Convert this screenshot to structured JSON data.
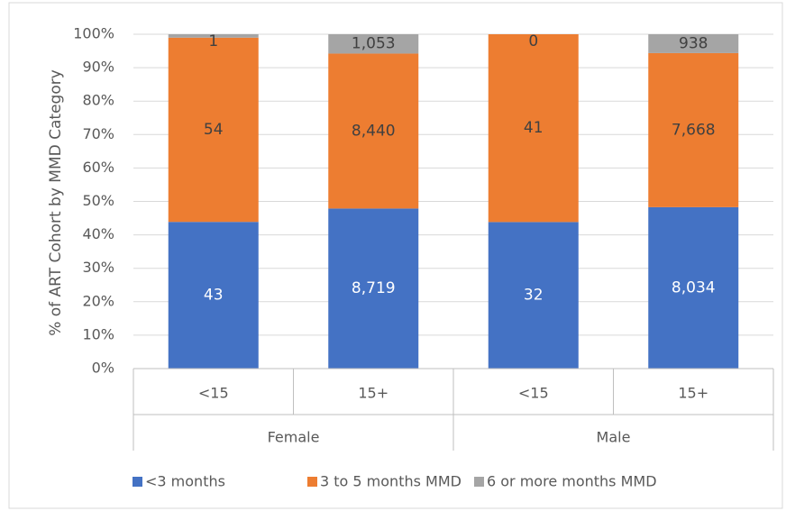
{
  "chart_data": {
    "type": "bar",
    "stacking": "percent",
    "y_label": "% of ART Cohort by MMD Category",
    "categories": [
      "<15",
      "15+",
      "<15",
      "15+"
    ],
    "group_labels": [
      "Female",
      "Male"
    ],
    "series": [
      {
        "name": "<3 months",
        "color": "#4472c4",
        "label_color": "#ffffff",
        "values": [
          43,
          8719,
          32,
          8034
        ],
        "value_labels": [
          "43",
          "8,719",
          "32",
          "8,034"
        ]
      },
      {
        "name": "3 to 5 months MMD",
        "color": "#ed7d31",
        "label_color": "#404040",
        "values": [
          54,
          8440,
          41,
          7668
        ],
        "value_labels": [
          "54",
          "8,440",
          "41",
          "7,668"
        ]
      },
      {
        "name": "6 or more months MMD",
        "color": "#a5a5a5",
        "label_color": "#404040",
        "values": [
          1,
          1053,
          0,
          938
        ],
        "value_labels": [
          "1",
          "1,053",
          "0",
          "938"
        ]
      }
    ],
    "ylim": [
      0,
      100
    ],
    "yticks": [
      {
        "value": 0,
        "label": "0%"
      },
      {
        "value": 10,
        "label": "10%"
      },
      {
        "value": 20,
        "label": "20%"
      },
      {
        "value": 30,
        "label": "30%"
      },
      {
        "value": 40,
        "label": "40%"
      },
      {
        "value": 50,
        "label": "50%"
      },
      {
        "value": 60,
        "label": "60%"
      },
      {
        "value": 70,
        "label": "70%"
      },
      {
        "value": 80,
        "label": "80%"
      },
      {
        "value": 90,
        "label": "90%"
      },
      {
        "value": 100,
        "label": "100%"
      }
    ],
    "grid": true,
    "legend": "bottom"
  }
}
